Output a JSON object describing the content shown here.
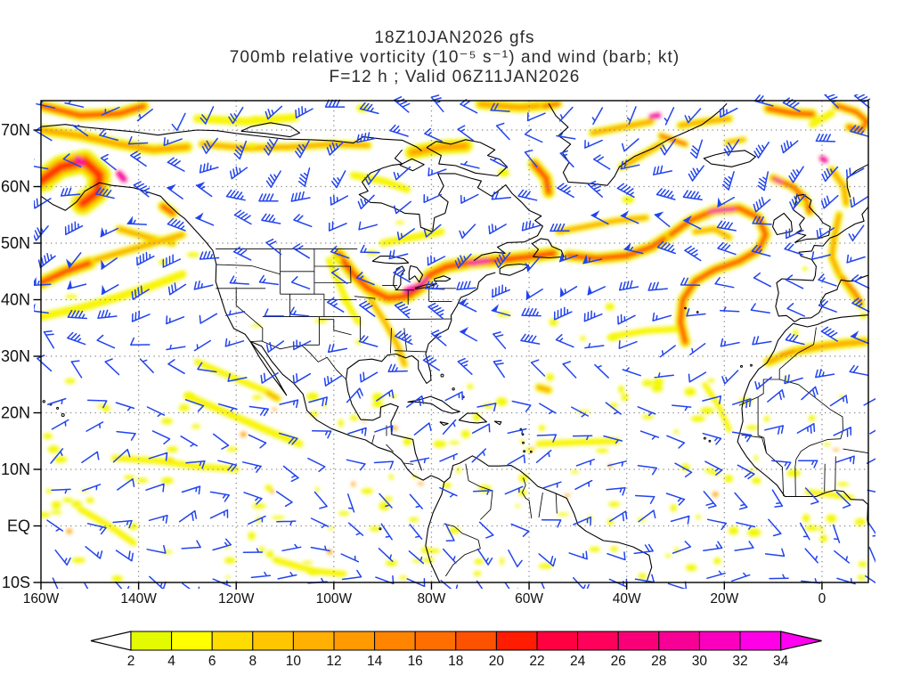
{
  "title": {
    "line1": "18Z10JAN2026 gfs",
    "line2": "700mb relative vorticity (10⁻⁵ s⁻¹) and wind (barb; kt)",
    "line3": "F=12 h ; Valid 06Z11JAN2026"
  },
  "axes": {
    "lat_labels": [
      {
        "value": 70,
        "label": "70N"
      },
      {
        "value": 60,
        "label": "60N"
      },
      {
        "value": 50,
        "label": "50N"
      },
      {
        "value": 40,
        "label": "40N"
      },
      {
        "value": 30,
        "label": "30N"
      },
      {
        "value": 20,
        "label": "20N"
      },
      {
        "value": 10,
        "label": "10N"
      },
      {
        "value": 0,
        "label": "EQ"
      },
      {
        "value": -10,
        "label": "10S"
      }
    ],
    "lon_labels": [
      {
        "value": -160,
        "label": "160W"
      },
      {
        "value": -140,
        "label": "140W"
      },
      {
        "value": -120,
        "label": "120W"
      },
      {
        "value": -100,
        "label": "100W"
      },
      {
        "value": -80,
        "label": "80W"
      },
      {
        "value": -60,
        "label": "60W"
      },
      {
        "value": -40,
        "label": "40W"
      },
      {
        "value": -20,
        "label": "20W"
      },
      {
        "value": 0,
        "label": "0"
      }
    ]
  },
  "colorbar": {
    "values": [
      2,
      4,
      6,
      8,
      10,
      12,
      14,
      16,
      18,
      20,
      22,
      24,
      26,
      28,
      30,
      32,
      34
    ],
    "segment_colors": [
      "#E3FA00",
      "#FFFF00",
      "#FFDC00",
      "#FFC600",
      "#FFB000",
      "#FF9A00",
      "#FF8400",
      "#FF6E00",
      "#FF5200",
      "#FF1C00",
      "#FF0040",
      "#FF005A",
      "#FA0078",
      "#F70096",
      "#FA00BE",
      "#FF00E6"
    ],
    "left_arrow_color": "#FFFFFF",
    "right_arrow_color": "#FF00F0"
  },
  "chart_data": {
    "type": "heatmap",
    "model": "gfs",
    "init_time": "18Z10JAN2026",
    "field": "700mb relative vorticity and wind barbs",
    "units": "10^-5 s^-1; wind in kt",
    "forecast": "F=12 h",
    "valid_time": "06Z11JAN2026",
    "lon_range": [
      -160,
      9.5
    ],
    "lat_range": [
      -10,
      75.2
    ],
    "grid": {
      "lat_step": 10,
      "lon_step": 20,
      "style": "dotted",
      "color": "#8a8a8a"
    },
    "scale_min": 2,
    "scale_max": 34,
    "scale_step": 2,
    "wind_barb_color": "#2244EE",
    "coast_color": "#000000",
    "intensity_levels": {
      "1": "yellow 2-8",
      "2": "orange 8-16",
      "3": "red 16-24",
      "4": "magenta 24+"
    },
    "vorticity_features": [
      {
        "pts": [
          [
            -160,
            61
          ],
          [
            -156,
            63.5
          ],
          [
            -151,
            64.5
          ],
          [
            -148,
            62
          ],
          [
            -148.5,
            59
          ],
          [
            -151.5,
            57
          ]
        ],
        "w": 26,
        "i": 3
      },
      {
        "pts": [
          [
            -152.5,
            65
          ],
          [
            -151.5,
            64
          ]
        ],
        "w": 7,
        "i": 4
      },
      {
        "pts": [
          [
            -144,
            62.3
          ],
          [
            -143,
            61.3
          ]
        ],
        "w": 7,
        "i": 4
      },
      {
        "pts": [
          [
            -160,
            70
          ],
          [
            -152,
            69
          ],
          [
            -144,
            67.5
          ],
          [
            -137,
            66.5
          ],
          [
            -130,
            67
          ]
        ],
        "w": 12,
        "i": 2
      },
      {
        "pts": [
          [
            -160,
            74.3
          ],
          [
            -152,
            72.6
          ],
          [
            -144,
            72.9
          ],
          [
            -139,
            74.2
          ]
        ],
        "w": 13,
        "i": 3
      },
      {
        "pts": [
          [
            -144,
            52.5
          ],
          [
            -138,
            51
          ],
          [
            -133,
            50
          ]
        ],
        "w": 9,
        "i": 2
      },
      {
        "pts": [
          [
            -135,
            56.5
          ],
          [
            -133,
            55.3
          ]
        ],
        "w": 12,
        "i": 3
      },
      {
        "pts": [
          [
            -160,
            43
          ],
          [
            -155,
            45
          ],
          [
            -150,
            46.5
          ]
        ],
        "w": 15,
        "i": 3
      },
      {
        "pts": [
          [
            -149,
            47
          ],
          [
            -143,
            48.5
          ],
          [
            -137,
            50
          ],
          [
            -131,
            51.5
          ]
        ],
        "w": 9,
        "i": 2
      },
      {
        "pts": [
          [
            -160,
            37
          ],
          [
            -152,
            38.5
          ],
          [
            -144,
            40.5
          ],
          [
            -137,
            42.5
          ],
          [
            -131,
            44.5
          ]
        ],
        "w": 9,
        "i": 1
      },
      {
        "pts": [
          [
            -127,
            67.5
          ],
          [
            -118,
            66.8
          ],
          [
            -109,
            67
          ],
          [
            -100,
            67.5
          ],
          [
            -93,
            67.3
          ]
        ],
        "w": 9,
        "i": 2
      },
      {
        "pts": [
          [
            -128,
            72
          ],
          [
            -118,
            71.5
          ],
          [
            -108,
            72.2
          ]
        ],
        "w": 9,
        "i": 1
      },
      {
        "pts": [
          [
            -84,
            66
          ],
          [
            -78,
            67
          ],
          [
            -73,
            67.2
          ]
        ],
        "w": 16,
        "i": 2
      },
      {
        "pts": [
          [
            -70,
            74.6
          ],
          [
            -62,
            74
          ],
          [
            -55,
            74.5
          ]
        ],
        "w": 12,
        "i": 2
      },
      {
        "pts": [
          [
            -57,
            74.2
          ],
          [
            -54,
            74.6
          ]
        ],
        "w": 9,
        "i": 3
      },
      {
        "pts": [
          [
            -59,
            64
          ],
          [
            -56.5,
            61.5
          ],
          [
            -56,
            59
          ]
        ],
        "w": 14,
        "i": 3
      },
      {
        "pts": [
          [
            -96,
            62
          ],
          [
            -90,
            61
          ],
          [
            -85,
            59.5
          ]
        ],
        "w": 8,
        "i": 1
      },
      {
        "pts": [
          [
            -99,
            48
          ],
          [
            -96,
            44.5
          ],
          [
            -93,
            42
          ],
          [
            -89,
            40.3
          ],
          [
            -85,
            40.6
          ],
          [
            -82,
            42.3
          ],
          [
            -80.5,
            44.3
          ],
          [
            -77,
            45.8
          ],
          [
            -72,
            46.6
          ],
          [
            -66,
            47
          ],
          [
            -60,
            47.6
          ],
          [
            -55,
            48.2
          ]
        ],
        "w": 15,
        "i": 3
      },
      {
        "pts": [
          [
            -85.5,
            41.5
          ],
          [
            -82.5,
            42.6
          ],
          [
            -81,
            43.6
          ]
        ],
        "w": 6,
        "i": 4
      },
      {
        "pts": [
          [
            -72,
            46.4
          ],
          [
            -68.5,
            46.9
          ]
        ],
        "w": 6,
        "i": 4
      },
      {
        "pts": [
          [
            -92.5,
            40
          ],
          [
            -89.5,
            36
          ],
          [
            -87,
            32
          ],
          [
            -85.5,
            28.5
          ]
        ],
        "w": 8,
        "i": 2
      },
      {
        "pts": [
          [
            -52,
            47.8
          ],
          [
            -46,
            47.3
          ],
          [
            -40,
            47.8
          ],
          [
            -35,
            49.3
          ],
          [
            -31,
            51.5
          ]
        ],
        "w": 13,
        "i": 3
      },
      {
        "pts": [
          [
            -31,
            51.5
          ],
          [
            -27,
            54
          ],
          [
            -22,
            55.8
          ],
          [
            -17,
            56.2
          ],
          [
            -13,
            54.5
          ],
          [
            -11.5,
            51.5
          ],
          [
            -13,
            48.8
          ],
          [
            -17,
            46.8
          ],
          [
            -22,
            45.3
          ],
          [
            -26,
            43.3
          ],
          [
            -28.5,
            40
          ],
          [
            -29,
            36
          ],
          [
            -28,
            32.5
          ]
        ],
        "w": 12,
        "i": 3
      },
      {
        "pts": [
          [
            -23,
            55.6
          ],
          [
            -18,
            56
          ]
        ],
        "w": 5,
        "i": 4
      },
      {
        "pts": [
          [
            -26,
            52
          ],
          [
            -22,
            52.5
          ],
          [
            -19,
            51
          ]
        ],
        "w": 8,
        "i": 2
      },
      {
        "pts": [
          [
            -10,
            61.5
          ],
          [
            -6,
            60
          ],
          [
            -3.5,
            58
          ],
          [
            -2.5,
            55.5
          ]
        ],
        "w": 10,
        "i": 3
      },
      {
        "pts": [
          [
            -9.5,
            61.2
          ],
          [
            -8.5,
            60.8
          ]
        ],
        "w": 5,
        "i": 4
      },
      {
        "pts": [
          [
            0,
            65
          ],
          [
            0.7,
            64.6
          ]
        ],
        "w": 6,
        "i": 4
      },
      {
        "pts": [
          [
            2,
            63
          ],
          [
            4.5,
            60
          ],
          [
            5,
            57
          ]
        ],
        "w": 9,
        "i": 2
      },
      {
        "pts": [
          [
            3.5,
            55
          ],
          [
            2.5,
            51
          ],
          [
            2,
            47.5
          ],
          [
            3.5,
            44.5
          ],
          [
            6,
            41.5
          ],
          [
            8,
            39
          ]
        ],
        "w": 9,
        "i": 2
      },
      {
        "pts": [
          [
            4,
            44
          ],
          [
            6.5,
            41.5
          ],
          [
            8,
            39.5
          ]
        ],
        "w": 8,
        "i": 3
      },
      {
        "pts": [
          [
            -41,
            63.5
          ],
          [
            -37,
            65.5
          ],
          [
            -33,
            67.5
          ]
        ],
        "w": 9,
        "i": 2
      },
      {
        "pts": [
          [
            -33,
            69
          ],
          [
            -28,
            67.5
          ]
        ],
        "w": 8,
        "i": 3
      },
      {
        "pts": [
          [
            -47,
            69.5
          ],
          [
            -41,
            70.5
          ],
          [
            -35,
            71.5
          ]
        ],
        "w": 9,
        "i": 2
      },
      {
        "pts": [
          [
            -35,
            72.3
          ],
          [
            -33.5,
            72.6
          ]
        ],
        "w": 6,
        "i": 4
      },
      {
        "pts": [
          [
            -29,
            70.8
          ],
          [
            -24,
            71.5
          ],
          [
            -19,
            72
          ]
        ],
        "w": 9,
        "i": 2
      },
      {
        "pts": [
          [
            -19.5,
            67.8
          ],
          [
            -16,
            68.3
          ]
        ],
        "w": 7,
        "i": 2
      },
      {
        "pts": [
          [
            -11,
            73.8
          ],
          [
            -6,
            73
          ],
          [
            -2,
            72.8
          ]
        ],
        "w": 12,
        "i": 3
      },
      {
        "pts": [
          [
            3,
            74.3
          ],
          [
            7,
            73.2
          ],
          [
            9.3,
            71.5
          ],
          [
            8,
            70
          ],
          [
            5.5,
            70.5
          ]
        ],
        "w": 10,
        "i": 3
      },
      {
        "pts": [
          [
            -11,
            29
          ],
          [
            -6,
            30.8
          ],
          [
            0,
            31.8
          ],
          [
            5,
            32.3
          ],
          [
            9,
            32.6
          ]
        ],
        "w": 11,
        "i": 2
      },
      {
        "pts": [
          [
            -8.5,
            30.2
          ],
          [
            -5.5,
            30.9
          ]
        ],
        "w": 7,
        "i": 3
      },
      {
        "pts": [
          [
            -54,
            52
          ],
          [
            -48,
            53
          ],
          [
            -42,
            54
          ],
          [
            -36,
            54.5
          ]
        ],
        "w": 8,
        "i": 2
      },
      {
        "pts": [
          [
            -43,
            33.5
          ],
          [
            -36,
            34.5
          ],
          [
            -30,
            34.8
          ]
        ],
        "w": 7,
        "i": 1
      },
      {
        "pts": [
          [
            -58,
            24.5
          ],
          [
            -56,
            24
          ]
        ],
        "w": 9,
        "i": 2
      },
      {
        "pts": [
          [
            -134,
            11.7
          ],
          [
            -133,
            11.5
          ]
        ],
        "w": 6,
        "i": 3
      },
      {
        "pts": [
          [
            -145,
            12
          ],
          [
            -136,
            11.5
          ],
          [
            -128,
            10.5
          ],
          [
            -120,
            10
          ]
        ],
        "w": 7,
        "i": 1
      },
      {
        "pts": [
          [
            -130,
            23
          ],
          [
            -122,
            20
          ],
          [
            -114,
            17
          ],
          [
            -107,
            14.5
          ]
        ],
        "w": 8,
        "i": 1
      },
      {
        "pts": [
          [
            -128,
            29
          ],
          [
            -120,
            26
          ],
          [
            -113,
            23.5
          ]
        ],
        "w": 7,
        "i": 1
      },
      {
        "pts": [
          [
            -113.5,
            23.5
          ],
          [
            -111.5,
            22.5
          ]
        ],
        "w": 8,
        "i": 2
      },
      {
        "pts": [
          [
            -152,
            3
          ],
          [
            -146,
            0
          ],
          [
            -141,
            -3
          ]
        ],
        "w": 7,
        "i": 1
      },
      {
        "pts": [
          [
            -112,
            -6
          ],
          [
            -104,
            -8
          ],
          [
            -98,
            -8.5
          ]
        ],
        "w": 7,
        "i": 1
      },
      {
        "pts": [
          [
            -58,
            14.5
          ],
          [
            -50,
            14.8
          ],
          [
            -42,
            15
          ]
        ],
        "w": 7,
        "i": 1
      },
      {
        "pts": [
          [
            -24,
            25
          ],
          [
            -21,
            21
          ],
          [
            -19,
            17
          ]
        ],
        "w": 6,
        "i": 1
      },
      {
        "pts": [
          [
            -3,
            6
          ],
          [
            2,
            5.5
          ],
          [
            6,
            5
          ]
        ],
        "w": 6,
        "i": 1
      },
      {
        "pts": [
          [
            -90,
            50
          ],
          [
            -84,
            51
          ],
          [
            -78,
            52
          ]
        ],
        "w": 8,
        "i": 1
      },
      {
        "pts": [
          [
            -101,
            47
          ],
          [
            -99,
            43
          ],
          [
            -97,
            39
          ],
          [
            -95,
            36
          ]
        ],
        "w": 7,
        "i": 1
      },
      {
        "pts": [
          [
            2,
            73
          ],
          [
            -2,
            71
          ]
        ],
        "w": 8,
        "i": 1
      }
    ],
    "wind_bands": [
      {
        "lat_min": 60,
        "lat_max": 76,
        "dir": 255,
        "dir_var": 55,
        "spd": 22,
        "spd_var": 16
      },
      {
        "lat_min": 45,
        "lat_max": 60,
        "dir": 262,
        "dir_var": 38,
        "spd": 32,
        "spd_var": 20
      },
      {
        "lat_min": 32,
        "lat_max": 45,
        "dir": 272,
        "dir_var": 30,
        "spd": 30,
        "spd_var": 22
      },
      {
        "lat_min": 24,
        "lat_max": 32,
        "dir": 278,
        "dir_var": 45,
        "spd": 15,
        "spd_var": 10
      },
      {
        "lat_min": 8,
        "lat_max": 24,
        "dir": 85,
        "dir_var": 35,
        "spd": 11,
        "spd_var": 7
      },
      {
        "lat_min": -3,
        "lat_max": 8,
        "dir": 105,
        "dir_var": 45,
        "spd": 8,
        "spd_var": 6
      },
      {
        "lat_min": -12,
        "lat_max": -3,
        "dir": 115,
        "dir_var": 35,
        "spd": 10,
        "spd_var": 7
      }
    ],
    "speckles": {
      "seed": 99,
      "yellow_count": 170,
      "orange_count": 14,
      "yellow_color": "#F2F800",
      "orange_color": "#FFA000"
    }
  }
}
